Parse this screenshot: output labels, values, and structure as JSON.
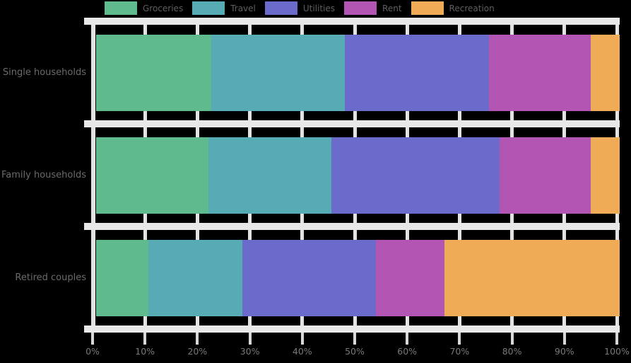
{
  "chart_data": {
    "type": "bar",
    "orientation": "horizontal",
    "stacked": true,
    "unit": "percent",
    "title": "",
    "xlabel": "",
    "ylabel": "",
    "xlim": [
      0,
      100
    ],
    "x_ticks": [
      "0%",
      "10%",
      "20%",
      "30%",
      "40%",
      "50%",
      "60%",
      "70%",
      "80%",
      "90%",
      "100%"
    ],
    "grid": true,
    "legend_position": "top",
    "categories": [
      "Single households",
      "Family households",
      "Retired couples"
    ],
    "series": [
      {
        "name": "Groceries",
        "color": "#5fba8d",
        "values": [
          22.0,
          21.5,
          10.0
        ]
      },
      {
        "name": "Travel",
        "color": "#56abb5",
        "values": [
          25.5,
          23.5,
          18.0
        ]
      },
      {
        "name": "Utilities",
        "color": "#6a6bca",
        "values": [
          27.5,
          32.0,
          25.5
        ]
      },
      {
        "name": "Rent",
        "color": "#b355b3",
        "values": [
          19.5,
          17.5,
          13.0
        ]
      },
      {
        "name": "Recreation",
        "color": "#efab55",
        "values": [
          5.5,
          5.5,
          33.5
        ]
      }
    ]
  },
  "styles": {
    "background": "#000000",
    "grid_color": "#e2e2e2",
    "band_color": "#e8e8e8",
    "tick_mark_color": "#d7d7d7",
    "legend_text_color": "#5f5f5f",
    "axis_text_color": "#6b6b6b",
    "tick_text_color": "#787878"
  }
}
